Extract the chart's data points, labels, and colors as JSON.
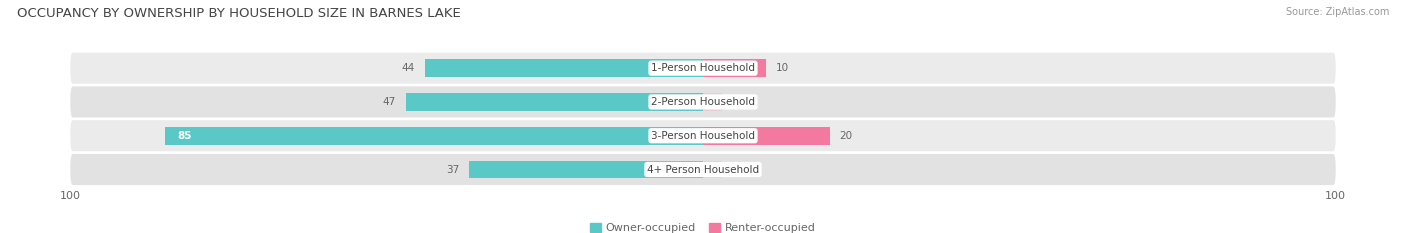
{
  "title": "OCCUPANCY BY OWNERSHIP BY HOUSEHOLD SIZE IN BARNES LAKE",
  "source": "Source: ZipAtlas.com",
  "categories": [
    "1-Person Household",
    "2-Person Household",
    "3-Person Household",
    "4+ Person Household"
  ],
  "owner_values": [
    44,
    47,
    85,
    37
  ],
  "renter_values": [
    10,
    0,
    20,
    0
  ],
  "owner_color": "#5BC8C8",
  "renter_color": "#F479A0",
  "row_bg_colors": [
    "#EBEBEB",
    "#E2E2E2",
    "#EBEBEB",
    "#E2E2E2"
  ],
  "axis_max": 100,
  "owner_label": "Owner-occupied",
  "renter_label": "Renter-occupied",
  "title_fontsize": 9.5,
  "label_fontsize": 7.5,
  "tick_fontsize": 8,
  "legend_fontsize": 8,
  "source_fontsize": 7
}
